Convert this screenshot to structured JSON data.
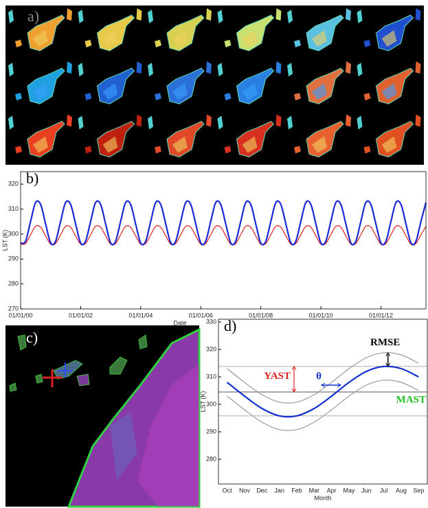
{
  "panel_a_label": "a)",
  "panel_c_label": "c)",
  "chart_data": [
    {
      "type": "line",
      "label": "b)",
      "y_label": "LST (K)",
      "x_label": "Date",
      "x": [
        "2000-01-01",
        "2000-03-01",
        "2000-05-01",
        "2000-07-01",
        "2000-09-01",
        "2000-11-01",
        "2001-01-01",
        "2001-03-01",
        "2001-05-01",
        "2001-07-01",
        "2001-09-01",
        "2001-11-01",
        "2002-01-01",
        "2002-03-01",
        "2002-05-01",
        "2002-07-01",
        "2002-09-01",
        "2002-11-01",
        "2003-01-01",
        "2003-03-01",
        "2003-05-01",
        "2003-07-01",
        "2003-09-01",
        "2003-11-01",
        "2004-01-01",
        "2004-03-01",
        "2004-05-01",
        "2004-07-01",
        "2004-09-01",
        "2004-11-01",
        "2005-01-01",
        "2005-03-01",
        "2005-05-01",
        "2005-07-01",
        "2005-09-01",
        "2005-11-01",
        "2006-01-01",
        "2006-03-01",
        "2006-05-01",
        "2006-07-01",
        "2006-09-01",
        "2006-11-01",
        "2007-01-01",
        "2007-03-01",
        "2007-05-01",
        "2007-07-01",
        "2007-09-01",
        "2007-11-01",
        "2008-01-01",
        "2008-03-01",
        "2008-05-01",
        "2008-07-01",
        "2008-09-01",
        "2008-11-01",
        "2009-01-01",
        "2009-03-01",
        "2009-05-01",
        "2009-07-01",
        "2009-09-01",
        "2009-11-01",
        "2010-01-01",
        "2010-03-01",
        "2010-05-01",
        "2010-07-01",
        "2010-09-01",
        "2010-11-01",
        "2011-01-01",
        "2011-03-01",
        "2011-05-01",
        "2011-07-01",
        "2011-09-01",
        "2011-11-01",
        "2012-01-01",
        "2012-03-01",
        "2012-05-01",
        "2012-07-01",
        "2012-09-01",
        "2012-11-01",
        "2013-01-01",
        "2013-03-01",
        "2013-05-01",
        "2013-07-01"
      ],
      "series": [
        {
          "color": "#1a2ad6",
          "values": [
            296.4,
            297.1,
            305.0,
            312.6,
            311.8,
            303.9,
            296.4,
            297.1,
            305.0,
            312.6,
            311.8,
            303.9,
            296.4,
            297.1,
            305.0,
            312.6,
            311.8,
            303.9,
            296.4,
            297.1,
            305.0,
            312.6,
            311.8,
            303.9,
            296.4,
            297.1,
            305.0,
            312.6,
            311.8,
            303.9,
            296.4,
            297.1,
            305.0,
            312.6,
            311.8,
            303.9,
            296.4,
            297.1,
            305.0,
            312.6,
            311.8,
            303.9,
            296.4,
            297.1,
            305.0,
            312.6,
            311.8,
            303.9,
            296.4,
            297.1,
            305.0,
            312.6,
            311.8,
            303.9,
            296.4,
            297.1,
            305.0,
            312.6,
            311.8,
            303.9,
            296.4,
            297.1,
            305.0,
            312.6,
            311.8,
            303.9,
            296.4,
            297.1,
            305.0,
            312.6,
            311.8,
            303.9,
            296.4,
            297.1,
            305.0,
            312.6,
            311.8,
            303.9,
            296.4,
            297.1,
            305.0,
            312.6
          ]
        },
        {
          "color": "#e02020",
          "values": [
            295.9,
            296.2,
            299.7,
            303.1,
            302.7,
            299.2,
            295.9,
            296.2,
            299.7,
            303.1,
            302.7,
            299.2,
            295.9,
            296.2,
            299.7,
            303.1,
            302.7,
            299.2,
            295.9,
            296.2,
            299.7,
            303.1,
            302.7,
            299.2,
            295.9,
            296.2,
            299.7,
            303.1,
            302.7,
            299.2,
            295.9,
            296.2,
            299.7,
            303.1,
            302.7,
            299.2,
            295.9,
            296.2,
            299.7,
            303.1,
            302.7,
            299.2,
            295.9,
            296.2,
            299.7,
            303.1,
            302.7,
            299.2,
            295.9,
            296.2,
            299.7,
            303.1,
            302.7,
            299.2,
            295.9,
            296.2,
            299.7,
            303.1,
            302.7,
            299.2,
            295.9,
            296.2,
            299.7,
            303.1,
            302.7,
            299.2,
            295.9,
            296.2,
            299.7,
            303.1,
            302.7,
            299.2,
            295.9,
            296.2,
            299.7,
            303.1,
            302.7,
            299.2,
            295.9,
            296.2,
            299.7,
            303.1
          ]
        }
      ],
      "xlim": [
        "2000-01-01",
        "2013-07-01"
      ],
      "xticks": [
        {
          "value": "2000-01-01",
          "label": "01/01/00"
        },
        {
          "value": "2002-01-01",
          "label": "01/01/02"
        },
        {
          "value": "2004-01-01",
          "label": "01/01/04"
        },
        {
          "value": "2006-01-01",
          "label": "01/01/06"
        },
        {
          "value": "2008-01-01",
          "label": "01/01/08"
        },
        {
          "value": "2010-01-01",
          "label": "01/01/10"
        },
        {
          "value": "2012-01-01",
          "label": "01/01/12"
        }
      ],
      "ylim": [
        270,
        325
      ],
      "yticks": [
        270,
        280,
        290,
        300,
        310,
        320
      ]
    },
    {
      "type": "line",
      "label": "d)",
      "y_label": "LST (K)",
      "x_label": "Month",
      "categories": [
        "Oct",
        "Nov",
        "Dec",
        "Jan",
        "Feb",
        "Mar",
        "Apr",
        "May",
        "Jun",
        "Jul",
        "Aug",
        "Sep"
      ],
      "series": [
        {
          "color": "#1030d0",
          "values": [
            308,
            303,
            298.5,
            295.8,
            295.8,
            298.5,
            303,
            308,
            312,
            313.8,
            313,
            310
          ]
        },
        {
          "color": "#9a9a9a",
          "values": [
            313,
            308,
            303.5,
            300.8,
            300.8,
            303.5,
            308,
            313,
            317,
            318.8,
            318,
            315
          ]
        },
        {
          "color": "#9a9a9a",
          "values": [
            303,
            298,
            293.5,
            290.8,
            290.8,
            293.5,
            298,
            303,
            307,
            308.8,
            308,
            305
          ]
        }
      ],
      "ylim": [
        271,
        331
      ],
      "yticks": [
        280,
        290,
        300,
        310,
        320,
        330
      ],
      "reference_lines": [
        {
          "value": 313.8,
          "style": "dotted"
        },
        {
          "value": 304.5,
          "style": "solid"
        },
        {
          "value": 295.8,
          "style": "dotted"
        }
      ],
      "annotations": [
        {
          "text": "RMSE",
          "color": "#000000"
        },
        {
          "text": "YAST",
          "color": "#e02020"
        },
        {
          "text": "θ",
          "color": "#1030d0"
        },
        {
          "text": "MAST",
          "color": "#20c020"
        }
      ]
    }
  ]
}
